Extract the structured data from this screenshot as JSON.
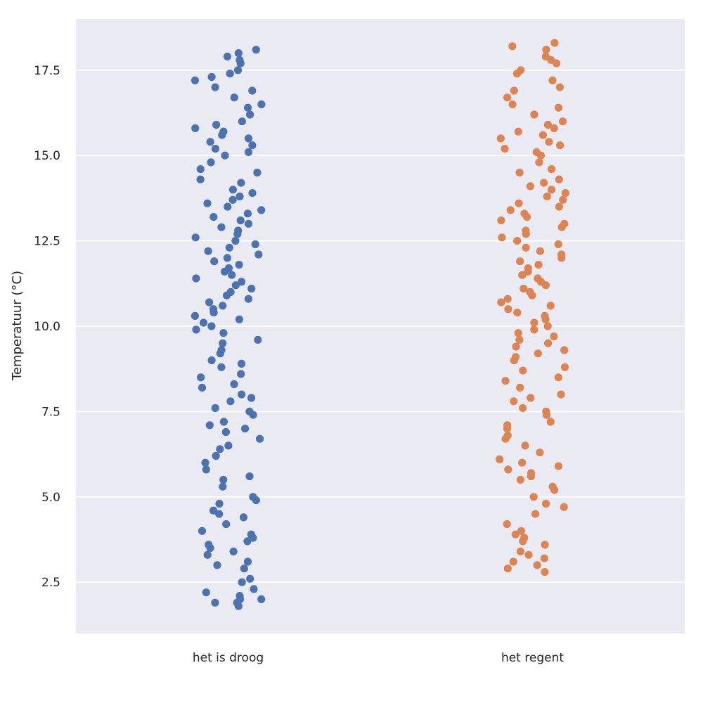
{
  "chart_data": {
    "type": "scatter",
    "subtype": "strip",
    "title": "",
    "xlabel": "",
    "ylabel": "Temperatuur (°C)",
    "categories": [
      "het is droog",
      "het regent"
    ],
    "ylim": [
      1.0,
      19.0
    ],
    "yticks": [
      2.5,
      5.0,
      7.5,
      10.0,
      12.5,
      15.0,
      17.5
    ],
    "ytick_labels": [
      "2.5",
      "5.0",
      "7.5",
      "10.0",
      "12.5",
      "15.0",
      "17.5"
    ],
    "grid": true,
    "legend": "none",
    "background_color": "#eaeaf2",
    "grid_color": "#ffffff",
    "series": [
      {
        "category": "het is droog",
        "color": "#4c72b0",
        "values": [
          1.8,
          1.9,
          1.9,
          2.0,
          2.0,
          2.1,
          2.2,
          2.3,
          2.5,
          2.6,
          2.9,
          3.0,
          3.1,
          3.3,
          3.4,
          3.5,
          3.6,
          3.7,
          3.8,
          3.9,
          4.0,
          4.2,
          4.4,
          4.5,
          4.6,
          4.8,
          4.9,
          5.0,
          5.3,
          5.5,
          5.6,
          5.8,
          6.0,
          6.2,
          6.4,
          6.5,
          6.7,
          6.9,
          7.0,
          7.1,
          7.2,
          7.4,
          7.5,
          7.6,
          7.8,
          7.9,
          8.0,
          8.2,
          8.3,
          8.5,
          8.6,
          8.8,
          8.9,
          9.0,
          9.2,
          9.3,
          9.5,
          9.6,
          9.8,
          9.9,
          10.0,
          10.1,
          10.2,
          10.3,
          10.4,
          10.5,
          10.6,
          10.7,
          10.8,
          10.9,
          11.0,
          11.1,
          11.2,
          11.3,
          11.4,
          11.5,
          11.6,
          11.7,
          11.8,
          11.9,
          12.0,
          12.1,
          12.2,
          12.3,
          12.4,
          12.5,
          12.6,
          12.7,
          12.8,
          12.9,
          13.0,
          13.1,
          13.2,
          13.3,
          13.4,
          13.5,
          13.6,
          13.7,
          13.8,
          13.9,
          14.0,
          14.2,
          14.3,
          14.5,
          14.6,
          14.8,
          15.0,
          15.1,
          15.2,
          15.3,
          15.4,
          15.5,
          15.6,
          15.7,
          15.8,
          15.9,
          16.0,
          16.2,
          16.4,
          16.5,
          16.7,
          16.9,
          17.0,
          17.2,
          17.3,
          17.4,
          17.5,
          17.7,
          17.8,
          17.9,
          18.0,
          18.1
        ]
      },
      {
        "category": "het regent",
        "color": "#dd8452",
        "values": [
          2.8,
          2.9,
          3.0,
          3.1,
          3.2,
          3.3,
          3.4,
          3.6,
          3.7,
          3.8,
          3.9,
          4.0,
          4.2,
          4.5,
          4.7,
          4.8,
          5.0,
          5.2,
          5.3,
          5.5,
          5.6,
          5.7,
          5.8,
          5.9,
          6.0,
          6.1,
          6.3,
          6.5,
          6.7,
          6.8,
          7.0,
          7.1,
          7.2,
          7.4,
          7.5,
          7.6,
          7.8,
          7.9,
          8.0,
          8.2,
          8.4,
          8.5,
          8.7,
          8.8,
          9.0,
          9.1,
          9.2,
          9.3,
          9.4,
          9.5,
          9.6,
          9.7,
          9.8,
          9.9,
          10.0,
          10.1,
          10.2,
          10.3,
          10.4,
          10.5,
          10.6,
          10.7,
          10.8,
          10.9,
          11.0,
          11.1,
          11.2,
          11.3,
          11.4,
          11.5,
          11.6,
          11.7,
          11.8,
          11.9,
          12.0,
          12.1,
          12.2,
          12.3,
          12.4,
          12.5,
          12.6,
          12.7,
          12.8,
          12.9,
          13.0,
          13.1,
          13.2,
          13.3,
          13.4,
          13.5,
          13.6,
          13.7,
          13.8,
          13.9,
          14.0,
          14.1,
          14.2,
          14.3,
          14.5,
          14.6,
          14.8,
          15.0,
          15.1,
          15.2,
          15.3,
          15.4,
          15.5,
          15.6,
          15.7,
          15.8,
          15.9,
          16.0,
          16.2,
          16.4,
          16.5,
          16.7,
          16.9,
          17.0,
          17.2,
          17.4,
          17.5,
          17.7,
          17.8,
          17.9,
          18.1,
          18.2,
          18.3
        ]
      }
    ]
  }
}
